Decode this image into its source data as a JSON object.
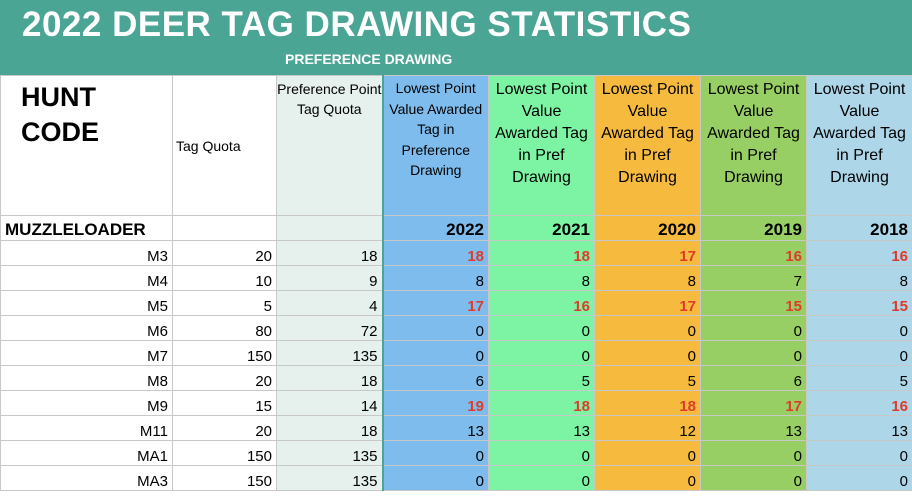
{
  "title": "2022 DEER TAG DRAWING STATISTICS",
  "subtitle": "PREFERENCE DRAWING",
  "headers": {
    "hunt_code": "HUNT CODE",
    "tag_quota": "Tag Quota",
    "pref_quota": "Preference Point Tag Quota",
    "y2022": "Lowest Point Value Awarded Tag in Preference Drawing",
    "y2021": "Lowest Point Value Awarded Tag in Pref Drawing",
    "y2020": "Lowest Point Value Awarded Tag in Pref Drawing",
    "y2019": "Lowest Point Value Awarded Tag in Pref Drawing",
    "y2018": "Lowest Point Value Awarded Tag in Pref Drawing"
  },
  "section": {
    "label": "MUZZLELOADER",
    "years": [
      "2022",
      "2021",
      "2020",
      "2019",
      "2018"
    ]
  },
  "colors": {
    "banner": "#4aa595",
    "pref_col": "#e6f0ec",
    "y2022": "#7dbcec",
    "y2021": "#7cf4a3",
    "y2020": "#f6bb3e",
    "y2019": "#98cf64",
    "y2018": "#add6e9",
    "highlight_text": "#e03a2a"
  },
  "rows": [
    {
      "code": "M3",
      "quota": "20",
      "pref": "18",
      "v": [
        "18",
        "18",
        "17",
        "16",
        "16"
      ],
      "red": [
        true,
        true,
        true,
        true,
        true
      ]
    },
    {
      "code": "M4",
      "quota": "10",
      "pref": "9",
      "v": [
        "8",
        "8",
        "8",
        "7",
        "8"
      ],
      "red": [
        false,
        false,
        false,
        false,
        false
      ]
    },
    {
      "code": "M5",
      "quota": "5",
      "pref": "4",
      "v": [
        "17",
        "16",
        "17",
        "15",
        "15"
      ],
      "red": [
        true,
        true,
        true,
        true,
        true
      ]
    },
    {
      "code": "M6",
      "quota": "80",
      "pref": "72",
      "v": [
        "0",
        "0",
        "0",
        "0",
        "0"
      ],
      "red": [
        false,
        false,
        false,
        false,
        false
      ]
    },
    {
      "code": "M7",
      "quota": "150",
      "pref": "135",
      "v": [
        "0",
        "0",
        "0",
        "0",
        "0"
      ],
      "red": [
        false,
        false,
        false,
        false,
        false
      ]
    },
    {
      "code": "M8",
      "quota": "20",
      "pref": "18",
      "v": [
        "6",
        "5",
        "5",
        "6",
        "5"
      ],
      "red": [
        false,
        false,
        false,
        false,
        false
      ]
    },
    {
      "code": "M9",
      "quota": "15",
      "pref": "14",
      "v": [
        "19",
        "18",
        "18",
        "17",
        "16"
      ],
      "red": [
        true,
        true,
        true,
        true,
        true
      ]
    },
    {
      "code": "M11",
      "quota": "20",
      "pref": "18",
      "v": [
        "13",
        "13",
        "12",
        "13",
        "13"
      ],
      "red": [
        false,
        false,
        false,
        false,
        false
      ]
    },
    {
      "code": "MA1",
      "quota": "150",
      "pref": "135",
      "v": [
        "0",
        "0",
        "0",
        "0",
        "0"
      ],
      "red": [
        false,
        false,
        false,
        false,
        false
      ]
    },
    {
      "code": "MA3",
      "quota": "150",
      "pref": "135",
      "v": [
        "0",
        "0",
        "0",
        "0",
        "0"
      ],
      "red": [
        false,
        false,
        false,
        false,
        false
      ]
    }
  ]
}
